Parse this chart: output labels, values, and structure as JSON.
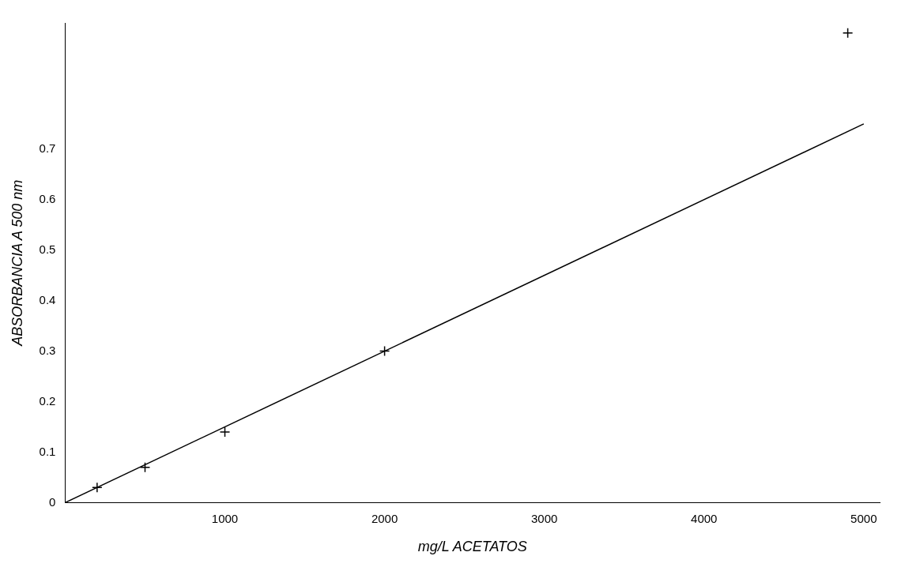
{
  "chart_data": {
    "type": "scatter",
    "xlabel": "mg/L ACETATOS",
    "ylabel": "ABSORBANCIA A 500 nm",
    "xlim": [
      0,
      5100
    ],
    "ylim": [
      0,
      0.95
    ],
    "xticks": [
      1000,
      2000,
      3000,
      4000,
      5000
    ],
    "yticks": [
      0,
      0.1,
      0.2,
      0.3,
      0.4,
      0.5,
      0.6,
      0.7
    ],
    "grid": false,
    "legend": false,
    "series": [
      {
        "color": "#000000",
        "marker": "cross",
        "x": [
          200,
          500,
          1000,
          2000,
          4900
        ],
        "values": [
          0.03,
          0.07,
          0.14,
          0.3,
          0.93
        ]
      },
      {
        "type": "line",
        "color": "#000000",
        "marker": "none",
        "line_style": "solid",
        "x": [
          0,
          5000
        ],
        "values": [
          0,
          0.75
        ]
      }
    ]
  }
}
